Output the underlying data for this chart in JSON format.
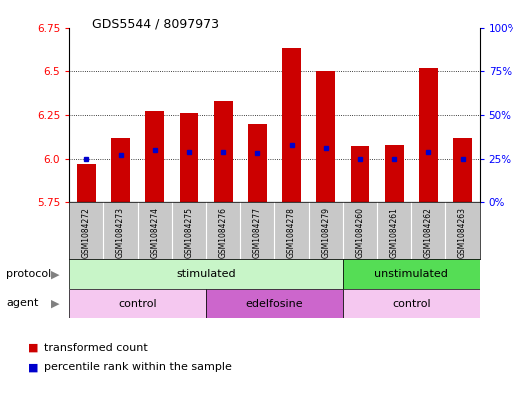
{
  "title": "GDS5544 / 8097973",
  "samples": [
    "GSM1084272",
    "GSM1084273",
    "GSM1084274",
    "GSM1084275",
    "GSM1084276",
    "GSM1084277",
    "GSM1084278",
    "GSM1084279",
    "GSM1084260",
    "GSM1084261",
    "GSM1084262",
    "GSM1084263"
  ],
  "bar_bottom": 5.75,
  "bar_tops": [
    5.97,
    6.12,
    6.27,
    6.26,
    6.33,
    6.2,
    6.63,
    6.5,
    6.07,
    6.08,
    6.52,
    6.12
  ],
  "percentile_values": [
    6.0,
    6.02,
    6.05,
    6.04,
    6.04,
    6.03,
    6.08,
    6.06,
    6.0,
    6.0,
    6.04,
    6.0
  ],
  "ylim": [
    5.75,
    6.75
  ],
  "yticks_left": [
    5.75,
    6.0,
    6.25,
    6.5,
    6.75
  ],
  "yticks_right_pct": [
    0,
    25,
    50,
    75,
    100
  ],
  "yticks_right_vals": [
    5.75,
    6.0,
    6.25,
    6.5,
    6.75
  ],
  "bar_color": "#cc0000",
  "percentile_color": "#0000cc",
  "stimulated_color_light": "#c8f5c8",
  "stimulated_color_dark": "#55dd55",
  "agent_control_color": "#f5c8f0",
  "agent_edelfosine_color": "#cc66cc",
  "legend_items": [
    "transformed count",
    "percentile rank within the sample"
  ],
  "background_color": "#ffffff",
  "xticklabel_bg": "#c8c8c8"
}
